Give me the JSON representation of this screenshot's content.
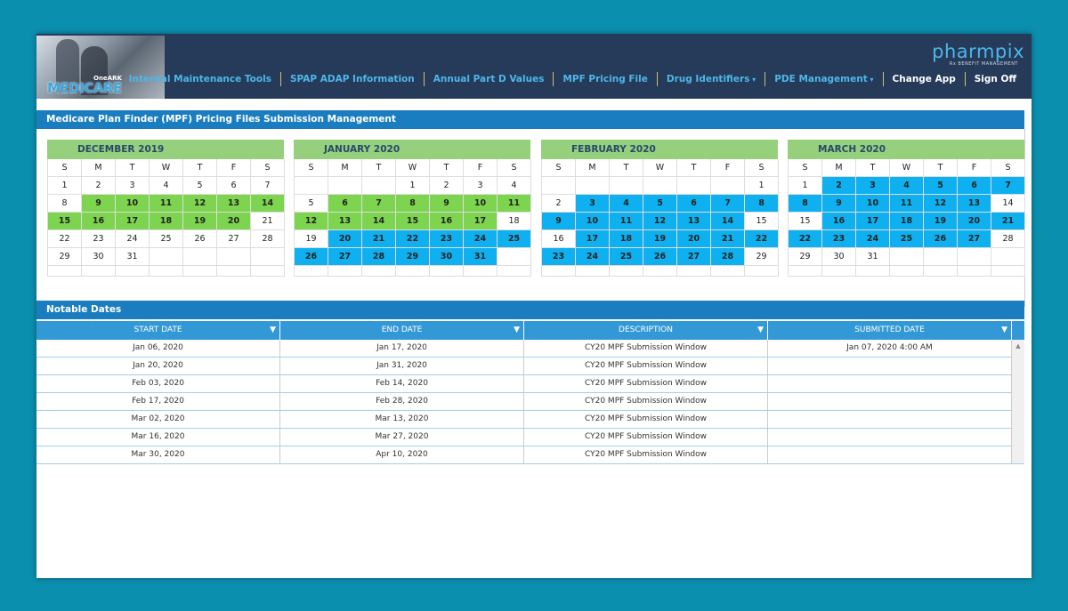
{
  "header": {
    "logo_small": "OneARK",
    "logo_big": "MEDICARE",
    "brand": "pharmpix",
    "brand_tagline": "Rx BENEFIT MANAGEMENT",
    "nav": [
      "Internal Maintenance Tools",
      "SPAP ADAP Information",
      "Annual Part D Values",
      "MPF Pricing File",
      "Drug Identifiers",
      "PDE Management"
    ],
    "nav_dropdown": [
      false,
      false,
      false,
      false,
      true,
      true
    ],
    "actions": [
      "Change App",
      "Sign Off"
    ]
  },
  "calendar_panel": {
    "title": "Medicare Plan Finder (MPF) Pricing Files Submission Management",
    "weekdays": [
      "S",
      "M",
      "T",
      "W",
      "T",
      "F",
      "S"
    ],
    "months": [
      {
        "title": "DECEMBER 2019",
        "weeks": [
          [
            1,
            2,
            3,
            4,
            5,
            6,
            7
          ],
          [
            8,
            9,
            10,
            11,
            12,
            13,
            14
          ],
          [
            15,
            16,
            17,
            18,
            19,
            20,
            21
          ],
          [
            22,
            23,
            24,
            25,
            26,
            27,
            28
          ],
          [
            29,
            30,
            31,
            null,
            null,
            null,
            null
          ]
        ],
        "green": [
          9,
          10,
          11,
          12,
          13,
          14,
          15,
          16,
          17,
          18,
          19,
          20
        ],
        "blue": []
      },
      {
        "title": "JANUARY 2020",
        "weeks": [
          [
            null,
            null,
            null,
            1,
            2,
            3,
            4
          ],
          [
            5,
            6,
            7,
            8,
            9,
            10,
            11
          ],
          [
            12,
            13,
            14,
            15,
            16,
            17,
            18
          ],
          [
            19,
            20,
            21,
            22,
            23,
            24,
            25
          ],
          [
            26,
            27,
            28,
            29,
            30,
            31,
            null
          ]
        ],
        "green": [
          6,
          7,
          8,
          9,
          10,
          11,
          12,
          13,
          14,
          15,
          16,
          17
        ],
        "blue": [
          20,
          21,
          22,
          23,
          24,
          25,
          26,
          27,
          28,
          29,
          30,
          31
        ]
      },
      {
        "title": "FEBRUARY 2020",
        "weeks": [
          [
            null,
            null,
            null,
            null,
            null,
            null,
            1
          ],
          [
            2,
            3,
            4,
            5,
            6,
            7,
            8
          ],
          [
            9,
            10,
            11,
            12,
            13,
            14,
            15
          ],
          [
            16,
            17,
            18,
            19,
            20,
            21,
            22
          ],
          [
            23,
            24,
            25,
            26,
            27,
            28,
            29
          ]
        ],
        "green": [],
        "blue": [
          3,
          4,
          5,
          6,
          7,
          8,
          9,
          10,
          11,
          12,
          13,
          14,
          17,
          18,
          19,
          20,
          21,
          22,
          23,
          24,
          25,
          26,
          27,
          28
        ]
      },
      {
        "title": "MARCH 2020",
        "weeks": [
          [
            1,
            2,
            3,
            4,
            5,
            6,
            7
          ],
          [
            8,
            9,
            10,
            11,
            12,
            13,
            14
          ],
          [
            15,
            16,
            17,
            18,
            19,
            20,
            21
          ],
          [
            22,
            23,
            24,
            25,
            26,
            27,
            28
          ],
          [
            29,
            30,
            31,
            null,
            null,
            null,
            null
          ]
        ],
        "green": [],
        "blue": [
          2,
          3,
          4,
          5,
          6,
          7,
          8,
          9,
          10,
          11,
          12,
          13,
          16,
          17,
          18,
          19,
          20,
          21,
          22,
          23,
          24,
          25,
          26,
          27
        ]
      }
    ]
  },
  "notable_dates": {
    "title": "Notable Dates",
    "columns": [
      "START DATE",
      "END DATE",
      "DESCRIPTION",
      "SUBMITTED DATE"
    ],
    "rows": [
      [
        "Jan 06, 2020",
        "Jan 17, 2020",
        "CY20 MPF Submission Window",
        "Jan 07, 2020 4:00 AM"
      ],
      [
        "Jan 20, 2020",
        "Jan 31, 2020",
        "CY20 MPF Submission Window",
        null
      ],
      [
        "Feb 03, 2020",
        "Feb 14, 2020",
        "CY20 MPF Submission Window",
        null
      ],
      [
        "Feb 17, 2020",
        "Feb 28, 2020",
        "CY20 MPF Submission Window",
        null
      ],
      [
        "Mar 02, 2020",
        "Mar 13, 2020",
        "CY20 MPF Submission Window",
        null
      ],
      [
        "Mar 16, 2020",
        "Mar 27, 2020",
        "CY20 MPF Submission Window",
        null
      ],
      [
        "Mar 30, 2020",
        "Apr 10, 2020",
        "CY20 MPF Submission Window",
        null
      ]
    ]
  }
}
